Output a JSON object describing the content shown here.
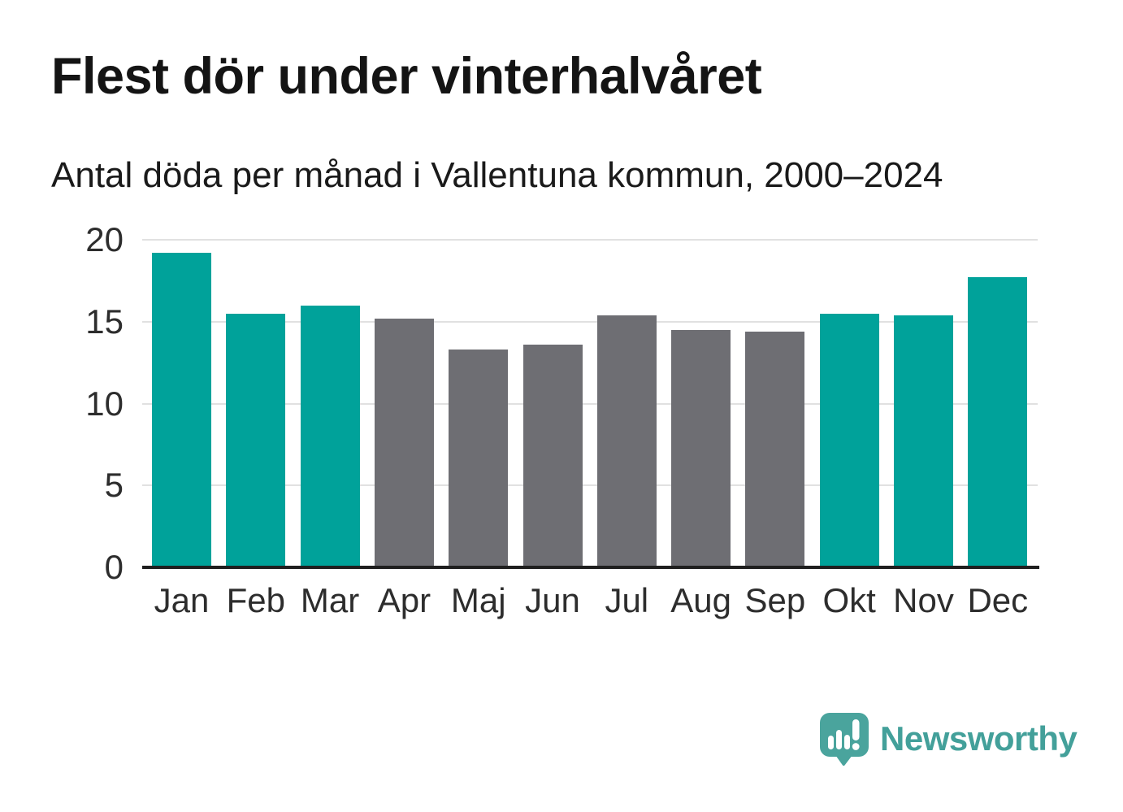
{
  "chart_data": {
    "type": "bar",
    "title": "Flest dör under vinterhalvåret",
    "subtitle": "Antal döda per månad i Vallentuna kommun, 2000–2024",
    "categories": [
      "Jan",
      "Feb",
      "Mar",
      "Apr",
      "Maj",
      "Jun",
      "Jul",
      "Aug",
      "Sep",
      "Okt",
      "Nov",
      "Dec"
    ],
    "values": [
      19.2,
      15.5,
      16.0,
      15.2,
      13.3,
      13.6,
      15.4,
      14.5,
      14.4,
      15.5,
      15.4,
      17.7
    ],
    "groups": [
      "winter",
      "winter",
      "winter",
      "summer",
      "summer",
      "summer",
      "summer",
      "summer",
      "summer",
      "winter",
      "winter",
      "winter"
    ],
    "group_colors": {
      "winter": "#00a29a",
      "summer": "#6e6e73"
    },
    "xlabel": "",
    "ylabel": "",
    "ylim": [
      0,
      20
    ],
    "yticks": [
      0,
      5,
      10,
      15,
      20
    ],
    "grid": "horizontal",
    "legend": "none",
    "axis_color": "#1f1f1f",
    "gridline_color": "#e1e1e1",
    "tick_label_color": "#2d2d2d"
  },
  "footer": {
    "logo_text": "Newsworthy",
    "logo_color": "#43a09a"
  }
}
